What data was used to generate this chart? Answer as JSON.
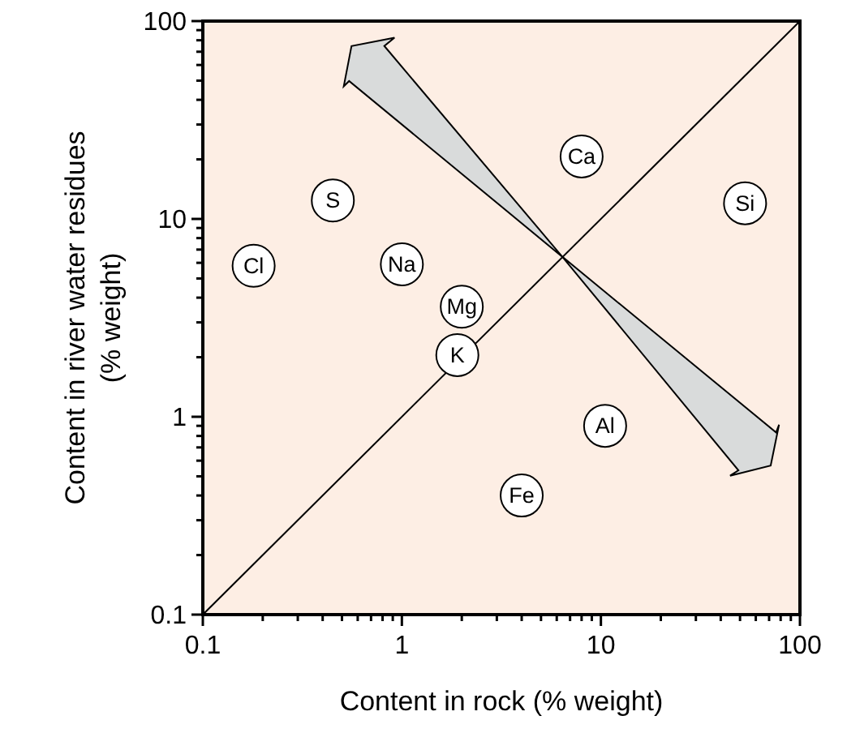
{
  "chart_data": {
    "type": "scatter",
    "xlabel": "Content in rock (% weight)",
    "ylabel": "Content in river water residues\n(% weight)",
    "log": "xy",
    "grid": false,
    "marker": "circle",
    "xlim": [
      0.1,
      100
    ],
    "ylim": [
      0.1,
      100
    ],
    "xticks": [
      0.1,
      {
        "value": 0.2,
        "label": null
      },
      {
        "value": 0.3,
        "label": null
      },
      {
        "value": 0.4,
        "label": null
      },
      {
        "value": 0.5,
        "label": null
      },
      {
        "value": 0.6,
        "label": null
      },
      {
        "value": 0.7,
        "label": null
      },
      {
        "value": 0.8,
        "label": null
      },
      {
        "value": 0.9,
        "label": null
      },
      1,
      {
        "value": 2,
        "label": null
      },
      {
        "value": 3,
        "label": null
      },
      {
        "value": 4,
        "label": null
      },
      {
        "value": 5,
        "label": null
      },
      {
        "value": 6,
        "label": null
      },
      {
        "value": 7,
        "label": null
      },
      {
        "value": 8,
        "label": null
      },
      {
        "value": 9,
        "label": null
      },
      10,
      {
        "value": 20,
        "label": null
      },
      {
        "value": 30,
        "label": null
      },
      {
        "value": 40,
        "label": null
      },
      {
        "value": 50,
        "label": null
      },
      {
        "value": 60,
        "label": null
      },
      {
        "value": 70,
        "label": null
      },
      {
        "value": 80,
        "label": null
      },
      {
        "value": 90,
        "label": null
      },
      100
    ],
    "yticks": [
      0.1,
      {
        "value": 0.2,
        "label": null
      },
      {
        "value": 0.3,
        "label": null
      },
      {
        "value": 0.4,
        "label": null
      },
      {
        "value": 0.5,
        "label": null
      },
      {
        "value": 0.6,
        "label": null
      },
      {
        "value": 0.7,
        "label": null
      },
      {
        "value": 0.8,
        "label": null
      },
      {
        "value": 0.9,
        "label": null
      },
      1,
      {
        "value": 2,
        "label": null
      },
      {
        "value": 3,
        "label": null
      },
      {
        "value": 4,
        "label": null
      },
      {
        "value": 5,
        "label": null
      },
      {
        "value": 6,
        "label": null
      },
      {
        "value": 7,
        "label": null
      },
      {
        "value": 8,
        "label": null
      },
      {
        "value": 9,
        "label": null
      },
      10,
      {
        "value": 20,
        "label": null
      },
      {
        "value": 30,
        "label": null
      },
      {
        "value": 40,
        "label": null
      },
      {
        "value": 50,
        "label": null
      },
      {
        "value": 60,
        "label": null
      },
      {
        "value": 70,
        "label": null
      },
      {
        "value": 80,
        "label": null
      },
      {
        "value": 90,
        "label": null
      },
      100
    ],
    "series": [
      {
        "type": "line",
        "color": "#000000",
        "marker": "none",
        "x": [
          0.1,
          100
        ],
        "values": [
          0.1,
          100
        ]
      },
      {
        "color": "#ffffff",
        "x": [
          0.18,
          0.45,
          1.0,
          2.0,
          1.9,
          8.0,
          53,
          10.5,
          4.0
        ],
        "values": [
          5.8,
          12.4,
          5.9,
          3.6,
          2.05,
          20.7,
          12,
          0.9,
          0.4
        ]
      }
    ],
    "annotations": [
      {
        "text": "Cl",
        "x": 0.18,
        "y": 5.8
      },
      {
        "text": "S",
        "x": 0.45,
        "y": 12.4
      },
      {
        "text": "Na",
        "x": 1.0,
        "y": 5.9
      },
      {
        "text": "Mg",
        "x": 2.0,
        "y": 3.6
      },
      {
        "text": "K",
        "x": 1.9,
        "y": 2.05
      },
      {
        "text": "Ca",
        "x": 8.0,
        "y": 20.7
      },
      {
        "text": "Si",
        "x": 53,
        "y": 12
      },
      {
        "text": "Al",
        "x": 10.5,
        "y": 0.9
      },
      {
        "text": "Fe",
        "x": 4.0,
        "y": 0.4
      }
    ]
  }
}
